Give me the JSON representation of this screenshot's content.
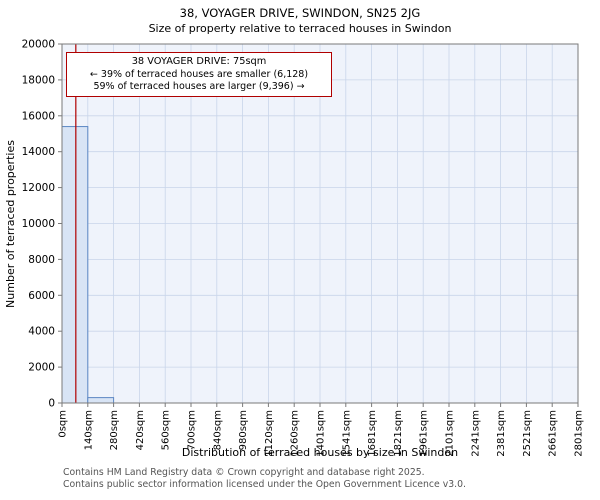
{
  "title": "38, VOYAGER DRIVE, SWINDON, SN25 2JG",
  "subtitle": "Size of property relative to terraced houses in Swindon",
  "annotation": {
    "line1": "38 VOYAGER DRIVE: 75sqm",
    "line2": "← 39% of terraced houses are smaller (6,128)",
    "line3": "59% of terraced houses are larger (9,396) →"
  },
  "footer": {
    "line1": "Contains HM Land Registry data © Crown copyright and database right 2025.",
    "line2": "Contains public sector information licensed under the Open Government Licence v3.0."
  },
  "chart_data": {
    "type": "bar",
    "title": "38, VOYAGER DRIVE, SWINDON, SN25 2JG",
    "subtitle": "Size of property relative to terraced houses in Swindon",
    "xlabel": "Distribution of terraced houses by size in Swindon",
    "ylabel": "Number of terraced properties",
    "x_tick_labels": [
      "0sqm",
      "140sqm",
      "280sqm",
      "420sqm",
      "560sqm",
      "700sqm",
      "840sqm",
      "980sqm",
      "1120sqm",
      "1260sqm",
      "1401sqm",
      "1541sqm",
      "1681sqm",
      "1821sqm",
      "1961sqm",
      "2101sqm",
      "2241sqm",
      "2381sqm",
      "2521sqm",
      "2661sqm",
      "2801sqm"
    ],
    "bin_width_sqm": 140,
    "x_range_sqm": [
      0,
      2800
    ],
    "values": [
      15400,
      300,
      0,
      0,
      0,
      0,
      0,
      0,
      0,
      0,
      0,
      0,
      0,
      0,
      0,
      0,
      0,
      0,
      0,
      0
    ],
    "ylim": [
      0,
      20000
    ],
    "y_tick_step": 2000,
    "grid": true,
    "marker": {
      "label": "38 VOYAGER DRIVE",
      "value_sqm": 75,
      "color": "#b00000"
    },
    "stats": {
      "smaller_pct": 39,
      "smaller_count": 6128,
      "larger_pct": 59,
      "larger_count": 9396
    },
    "colors": {
      "plot_bg": "#eff3fb",
      "grid": "#c9d5ea",
      "bar_fill": "#d8e4f5",
      "bar_edge": "#5b86c3",
      "spine": "#7a7a7a",
      "marker": "#b00000"
    }
  }
}
